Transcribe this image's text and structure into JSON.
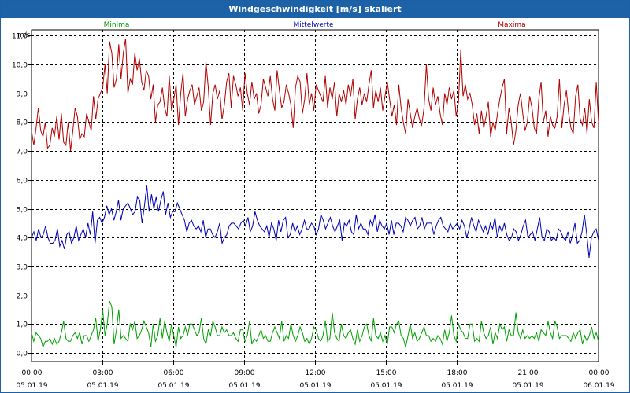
{
  "window": {
    "title": "Windgeschwindigkeit [m/s] skaliert"
  },
  "chart_data": {
    "type": "line",
    "title": "Windgeschwindigkeit [m/s] skaliert",
    "ylabel": "m/s",
    "xlabel": "",
    "ylim": [
      -0.3,
      11.2
    ],
    "yticks": [
      0.0,
      1.0,
      2.0,
      3.0,
      4.0,
      5.0,
      6.0,
      7.0,
      8.0,
      9.0,
      10.0,
      11.0
    ],
    "ytick_labels": [
      "0,0",
      "1,0",
      "2,0",
      "3,0",
      "4,0",
      "5,0",
      "6,0",
      "7,0",
      "8,0",
      "9,0",
      "10,0",
      "11,0"
    ],
    "xlim": [
      0,
      24
    ],
    "xticks": [
      0,
      3,
      6,
      9,
      12,
      15,
      18,
      21,
      24
    ],
    "xtick_labels": [
      {
        "time": "00:00",
        "date": "05.01.19"
      },
      {
        "time": "03:00",
        "date": "05.01.19"
      },
      {
        "time": "06:00",
        "date": "05.01.19"
      },
      {
        "time": "09:00",
        "date": "05.01.19"
      },
      {
        "time": "12:00",
        "date": "05.01.19"
      },
      {
        "time": "15:00",
        "date": "05.01.19"
      },
      {
        "time": "18:00",
        "date": "05.01.19"
      },
      {
        "time": "21:00",
        "date": "05.01.19"
      },
      {
        "time": "00:00",
        "date": "06.01.19"
      }
    ],
    "grid": true,
    "legend_position": "top",
    "series": [
      {
        "name": "Minima",
        "color": "#00a000",
        "values": [
          0.7,
          0.4,
          0.7,
          0.6,
          0.5,
          0.2,
          0.4,
          0.4,
          0.5,
          0.3,
          0.5,
          0.3,
          0.4,
          0.7,
          1.1,
          0.5,
          0.4,
          0.4,
          0.6,
          0.7,
          0.5,
          0.7,
          0.3,
          0.6,
          0.6,
          0.4,
          0.6,
          0.8,
          1.2,
          0.4,
          0.8,
          1.5,
          0.6,
          1.0,
          1.8,
          1.6,
          0.3,
          0.8,
          1.5,
          0.5,
          0.6,
          0.5,
          0.4,
          1.0,
          0.8,
          1.1,
          0.5,
          0.6,
          0.8,
          1.1,
          0.9,
          0.7,
          0.2,
          1.0,
          0.4,
          0.6,
          1.2,
          0.5,
          1.1,
          0.7,
          0.4,
          1.0,
          0.6,
          0.2,
          0.9,
          0.5,
          0.6,
          0.9,
          0.6,
          1.0,
          1.0,
          0.8,
          0.6,
          0.7,
          1.2,
          0.5,
          0.3,
          0.8,
          0.6,
          1.1,
          0.9,
          0.6,
          0.6,
          0.9,
          0.7,
          0.8,
          0.6,
          0.6,
          0.7,
          0.5,
          0.4,
          0.8,
          0.8,
          0.4,
          0.6,
          1.1,
          0.3,
          0.5,
          0.4,
          0.6,
          0.8,
          0.5,
          0.6,
          0.4,
          0.4,
          0.7,
          0.9,
          0.7,
          0.5,
          1.1,
          0.4,
          0.6,
          0.5,
          1.0,
          0.6,
          0.4,
          0.6,
          0.9,
          0.7,
          0.4,
          0.5,
          0.3,
          0.5,
          0.9,
          0.8,
          0.5,
          0.4,
          0.6,
          1.1,
          0.4,
          0.5,
          1.4,
          0.7,
          0.5,
          0.4,
          1.0,
          0.6,
          0.5,
          0.7,
          0.8,
          0.5,
          0.3,
          0.8,
          0.4,
          0.6,
          0.9,
          1.0,
          0.6,
          0.4,
          1.2,
          0.6,
          0.5,
          0.7,
          0.4,
          0.6,
          0.3,
          0.9,
          0.9,
          0.7,
          1.0,
          1.1,
          0.6,
          0.5,
          0.2,
          0.6,
          1.0,
          0.5,
          0.7,
          0.4,
          0.5,
          0.7,
          0.9,
          0.6,
          0.6,
          0.4,
          0.5,
          0.4,
          0.6,
          0.5,
          0.3,
          0.8,
          0.4,
          0.7,
          1.3,
          0.6,
          0.4,
          1.0,
          0.8,
          0.7,
          0.5,
          0.5,
          1.0,
          1.0,
          0.4,
          0.5,
          0.4,
          1.1,
          0.7,
          0.5,
          0.6,
          0.9,
          0.3,
          0.7,
          0.5,
          1.0,
          0.8,
          0.9,
          0.4,
          0.8,
          0.6,
          0.6,
          1.4,
          0.7,
          0.5,
          0.8,
          0.5,
          0.6,
          0.5,
          0.6,
          0.5,
          0.7,
          0.4,
          0.8,
          0.7,
          0.6,
          1.1,
          0.7,
          0.5,
          1.1,
          0.9,
          0.5,
          0.6,
          0.6,
          0.6,
          0.5,
          0.4,
          0.7,
          0.5,
          0.7,
          0.8,
          0.3,
          0.6,
          0.4,
          0.6,
          0.9,
          0.5,
          0.7,
          0.4
        ]
      },
      {
        "name": "Mittelwerte",
        "color": "#0000b0",
        "values": [
          4.0,
          4.2,
          3.9,
          4.3,
          4.0,
          4.1,
          4.4,
          4.0,
          3.8,
          3.8,
          3.9,
          4.3,
          3.7,
          3.9,
          3.6,
          4.1,
          4.2,
          3.8,
          4.0,
          4.4,
          3.9,
          4.1,
          4.3,
          4.0,
          4.5,
          4.1,
          4.9,
          3.8,
          4.6,
          4.7,
          4.5,
          4.7,
          5.1,
          4.8,
          5.0,
          4.6,
          4.9,
          5.3,
          4.6,
          5.0,
          5.1,
          5.2,
          5.0,
          4.8,
          4.9,
          5.4,
          5.3,
          4.5,
          5.1,
          5.8,
          4.9,
          5.5,
          5.0,
          5.4,
          4.9,
          5.3,
          5.6,
          4.8,
          5.2,
          4.7,
          4.9,
          4.9,
          5.2,
          5.0,
          4.8,
          4.6,
          4.2,
          4.5,
          4.6,
          4.4,
          4.3,
          4.4,
          4.2,
          4.6,
          4.0,
          4.3,
          4.3,
          4.1,
          4.0,
          4.2,
          4.5,
          3.8,
          4.0,
          4.1,
          4.4,
          4.5,
          4.5,
          4.4,
          4.3,
          4.5,
          4.6,
          4.4,
          4.7,
          4.2,
          4.4,
          4.9,
          4.6,
          4.4,
          4.3,
          4.2,
          4.4,
          4.0,
          4.5,
          4.3,
          3.9,
          4.6,
          4.2,
          4.6,
          4.7,
          4.0,
          4.1,
          4.5,
          4.2,
          4.4,
          4.1,
          4.3,
          4.6,
          4.3,
          4.3,
          4.5,
          4.4,
          4.1,
          4.3,
          4.8,
          4.6,
          4.3,
          4.5,
          4.7,
          4.4,
          4.2,
          4.4,
          4.6,
          3.9,
          4.5,
          4.4,
          4.6,
          4.2,
          4.1,
          4.8,
          4.3,
          4.5,
          4.3,
          4.3,
          4.1,
          4.6,
          4.4,
          4.8,
          4.2,
          4.6,
          4.4,
          4.3,
          4.5,
          4.1,
          4.6,
          4.1,
          4.5,
          4.5,
          4.4,
          4.2,
          4.7,
          4.6,
          4.4,
          4.6,
          4.7,
          4.3,
          4.4,
          4.7,
          4.3,
          4.5,
          4.5,
          4.5,
          4.1,
          4.4,
          4.6,
          4.7,
          4.4,
          4.3,
          4.2,
          4.5,
          4.3,
          4.4,
          4.5,
          4.3,
          4.6,
          4.4,
          4.0,
          4.3,
          4.7,
          4.4,
          4.2,
          4.6,
          4.4,
          4.2,
          4.4,
          4.1,
          4.5,
          4.3,
          4.7,
          4.0,
          4.4,
          4.2,
          4.5,
          4.1,
          3.9,
          4.0,
          4.3,
          4.2,
          3.9,
          4.1,
          4.4,
          4.6,
          4.0,
          4.1,
          4.2,
          3.9,
          4.3,
          4.7,
          4.0,
          3.9,
          4.3,
          4.2,
          3.9,
          4.0,
          3.9,
          4.3,
          4.2,
          4.0,
          3.9,
          4.2,
          3.8,
          4.1,
          4.5,
          3.8,
          3.9,
          4.2,
          4.8,
          4.1,
          3.3,
          4.0,
          4.2,
          4.3,
          3.9
        ]
      },
      {
        "name": "Maxima",
        "color": "#b00000",
        "values": [
          7.7,
          7.2,
          7.8,
          8.5,
          7.7,
          7.5,
          8.0,
          7.1,
          7.2,
          7.8,
          7.5,
          8.2,
          7.4,
          8.3,
          7.3,
          7.2,
          8.0,
          7.0,
          7.7,
          8.5,
          8.2,
          7.4,
          7.6,
          7.5,
          8.3,
          8.0,
          7.7,
          8.9,
          8.1,
          8.8,
          9.0,
          9.2,
          10.0,
          9.0,
          10.8,
          10.4,
          9.2,
          9.5,
          10.7,
          9.5,
          10.4,
          10.9,
          9.0,
          9.5,
          9.3,
          10.4,
          9.8,
          10.2,
          9.4,
          9.1,
          9.8,
          9.6,
          8.8,
          9.3,
          8.0,
          8.6,
          8.7,
          9.2,
          8.5,
          8.2,
          9.6,
          8.4,
          8.8,
          9.3,
          7.9,
          9.0,
          9.7,
          8.2,
          8.8,
          9.1,
          9.3,
          8.6,
          8.9,
          9.2,
          8.4,
          8.7,
          10.1,
          9.2,
          7.9,
          9.0,
          9.3,
          8.8,
          9.1,
          8.1,
          8.6,
          9.4,
          9.7,
          8.5,
          9.6,
          9.3,
          8.9,
          9.2,
          8.4,
          9.7,
          9.0,
          8.6,
          9.4,
          8.8,
          9.0,
          8.3,
          8.6,
          9.5,
          9.2,
          8.9,
          9.6,
          8.8,
          8.4,
          9.8,
          9.1,
          8.5,
          8.7,
          9.3,
          9.0,
          8.6,
          7.8,
          9.2,
          9.6,
          9.4,
          8.3,
          8.8,
          9.7,
          8.6,
          9.0,
          8.4,
          9.3,
          9.1,
          8.9,
          8.7,
          9.6,
          8.5,
          9.2,
          8.8,
          9.4,
          8.2,
          9.0,
          8.7,
          9.1,
          8.6,
          9.3,
          8.9,
          9.5,
          8.1,
          8.8,
          9.2,
          8.6,
          9.0,
          8.7,
          9.3,
          9.8,
          8.5,
          9.1,
          8.7,
          9.2,
          8.4,
          8.9,
          9.4,
          8.8,
          8.2,
          8.6,
          7.9,
          9.3,
          8.5,
          8.0,
          7.6,
          8.8,
          8.3,
          7.8,
          8.2,
          8.5,
          8.1,
          7.9,
          8.5,
          10.0,
          8.8,
          8.4,
          9.2,
          8.6,
          8.9,
          8.3,
          7.9,
          9.0,
          8.6,
          9.2,
          8.8,
          9.1,
          8.2,
          8.7,
          10.5,
          8.9,
          9.3,
          8.8,
          9.0,
          8.6,
          7.9,
          8.3,
          7.6,
          8.4,
          7.8,
          8.2,
          8.7,
          7.5,
          8.0,
          7.7,
          8.3,
          8.8,
          9.2,
          9.5,
          7.6,
          8.5,
          8.0,
          7.2,
          7.7,
          8.6,
          9.0,
          8.3,
          7.7,
          8.0,
          8.9,
          8.5,
          7.8,
          7.6,
          8.8,
          9.4,
          8.0,
          8.4,
          7.5,
          8.2,
          7.9,
          7.8,
          8.2,
          9.5,
          7.8,
          8.6,
          9.1,
          8.3,
          7.8,
          7.6,
          8.9,
          9.3,
          8.1,
          7.9,
          8.5,
          7.6,
          8.8,
          8.0,
          7.8,
          9.4,
          8.0
        ]
      }
    ]
  }
}
